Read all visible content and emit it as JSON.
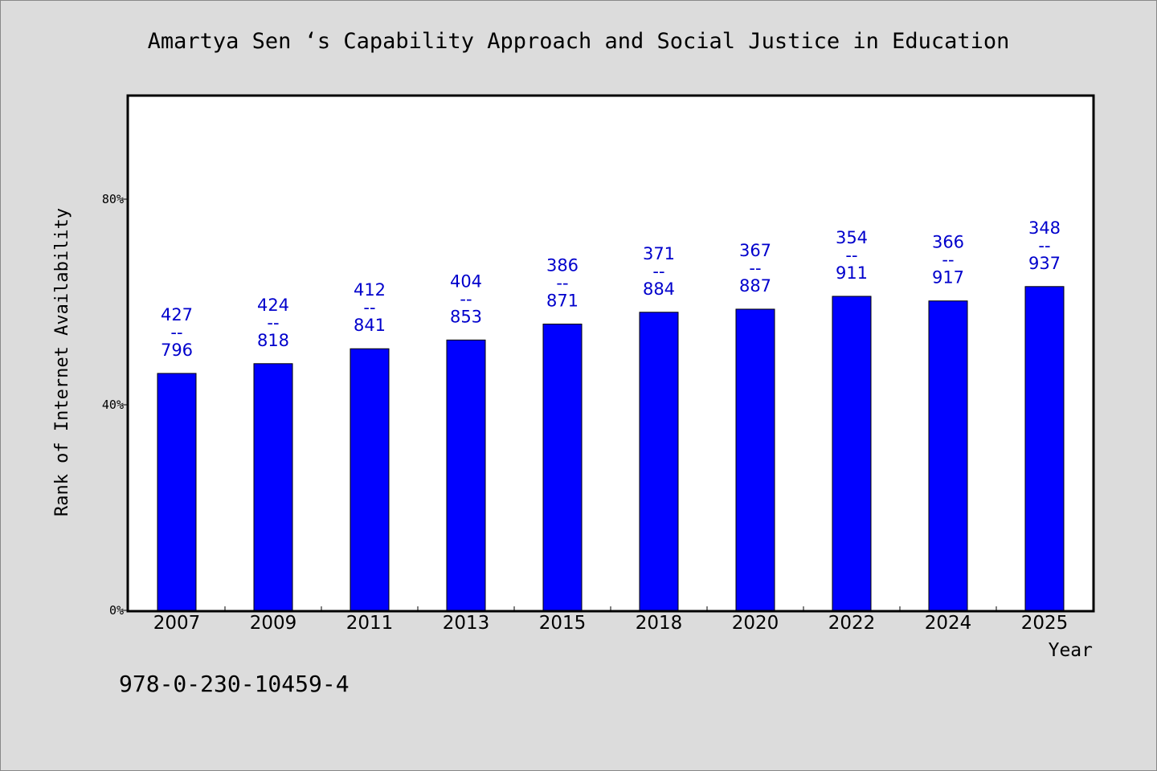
{
  "footer_code": "978-0-230-10459-4",
  "colors": {
    "bar": "#0000ff",
    "label": "#0000cc",
    "plot_bg": "#ffffff",
    "page_bg": "#dcdcdc"
  },
  "chart_data": {
    "type": "bar",
    "title": "Amartya Sen ‘s Capability Approach and Social Justice in Education",
    "xlabel": "Year",
    "ylabel": "Rank of Internet Availability",
    "ylim": [
      0,
      100
    ],
    "y_ticks": [
      0,
      40,
      80
    ],
    "y_tick_labels": [
      "0%",
      "40%",
      "80%"
    ],
    "grid": false,
    "categories": [
      "2007",
      "2009",
      "2011",
      "2013",
      "2015",
      "2018",
      "2020",
      "2022",
      "2024",
      "2025"
    ],
    "values": [
      46.1,
      48.0,
      50.9,
      52.6,
      55.7,
      58.0,
      58.6,
      61.1,
      60.2,
      63.0
    ],
    "data_labels": [
      [
        "427",
        "--",
        "796"
      ],
      [
        "424",
        "--",
        "818"
      ],
      [
        "412",
        "--",
        "841"
      ],
      [
        "404",
        "--",
        "853"
      ],
      [
        "386",
        "--",
        "871"
      ],
      [
        "371",
        "--",
        "884"
      ],
      [
        "367",
        "--",
        "887"
      ],
      [
        "354",
        "--",
        "911"
      ],
      [
        "366",
        "--",
        "917"
      ],
      [
        "348",
        "--",
        "937"
      ]
    ]
  }
}
